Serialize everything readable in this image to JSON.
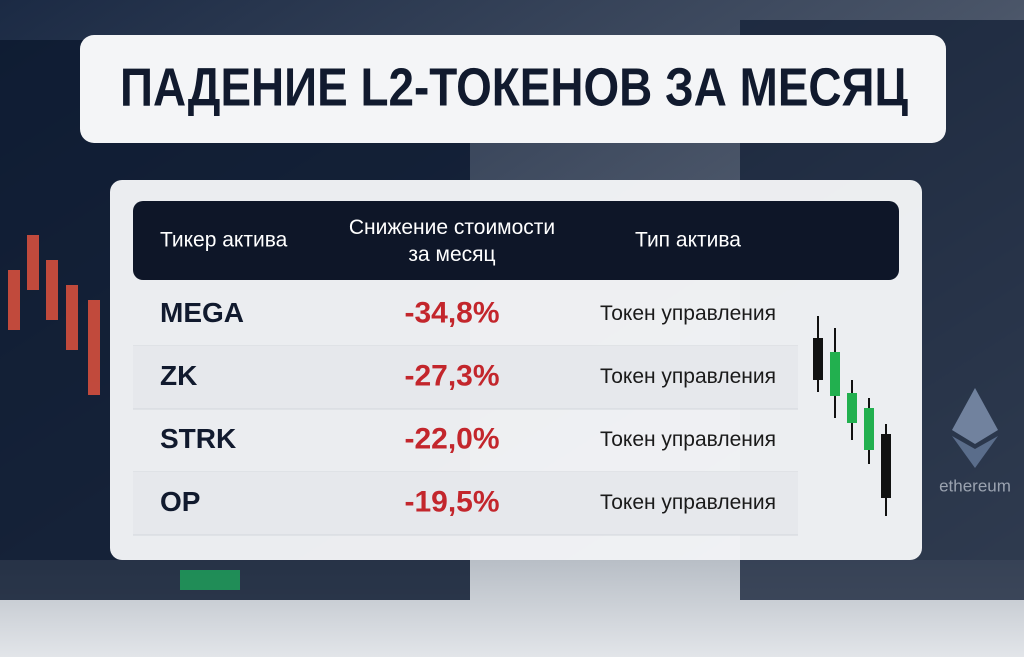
{
  "header": {
    "title": "ПАДЕНИЕ L2-ТОКЕНОВ ЗА МЕСЯЦ"
  },
  "table": {
    "columns": [
      "Тикер актива",
      "Снижение стоимости за месяц",
      "Тип актива"
    ],
    "rows": [
      [
        "MEGA",
        "-34,8%",
        "Токен управления"
      ],
      [
        "ZK",
        "-27,3%",
        "Токен управления"
      ],
      [
        "STRK",
        "-22,0%",
        "Токен управления"
      ],
      [
        "OP",
        "-19,5%",
        "Токен управления"
      ]
    ]
  },
  "background": {
    "logo_text": "ethereum"
  }
}
